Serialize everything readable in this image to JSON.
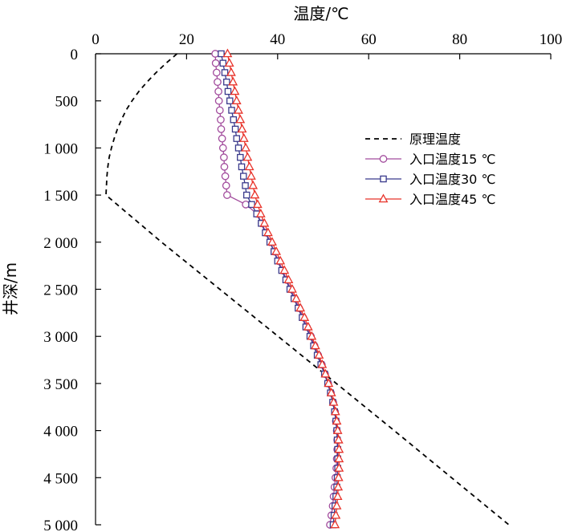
{
  "chart_data": {
    "type": "line",
    "x_label": "温度/℃",
    "y_label": "井深/m",
    "x_axis_position": "top",
    "y_axis_inverted": true,
    "xlim": [
      0,
      100
    ],
    "ylim": [
      0,
      5000
    ],
    "x_ticks": [
      0,
      20,
      40,
      60,
      80,
      100
    ],
    "x_tick_labels": [
      "0",
      "20",
      "40",
      "60",
      "80",
      "100"
    ],
    "y_ticks": [
      0,
      500,
      1000,
      1500,
      2000,
      2500,
      3000,
      3500,
      4000,
      4500,
      5000
    ],
    "y_tick_labels": [
      "0",
      "500",
      "1 000",
      "1 500",
      "2 000",
      "2 500",
      "3 000",
      "3 500",
      "4 000",
      "4 500",
      "5 000"
    ],
    "legend_position": "right",
    "series": [
      {
        "name": "原理温度",
        "style": "dashed",
        "color": "#000000",
        "marker": "none",
        "depth": [
          0,
          100,
          200,
          300,
          400,
          500,
          600,
          700,
          800,
          900,
          1000,
          1100,
          1200,
          1300,
          1400,
          1500,
          2000,
          2500,
          3000,
          3500,
          4000,
          4500,
          5000
        ],
        "temperature": [
          17.9,
          15.5,
          13.3,
          11.3,
          9.5,
          8.0,
          6.7,
          5.7,
          4.8,
          4.1,
          3.5,
          3.0,
          2.7,
          2.5,
          2.4,
          2.3,
          14.5,
          27.3,
          40.1,
          52.9,
          65.6,
          78.2,
          90.8
        ]
      },
      {
        "name": "入口温度15 ℃",
        "style": "solid",
        "color": "#A24C9D",
        "marker": "circle",
        "depth": [
          0,
          100,
          200,
          300,
          400,
          500,
          600,
          700,
          800,
          900,
          1000,
          1100,
          1200,
          1300,
          1400,
          1500,
          1600,
          1700,
          1800,
          1900,
          2000,
          2100,
          2200,
          2300,
          2400,
          2500,
          2600,
          2700,
          2800,
          2900,
          3000,
          3100,
          3200,
          3300,
          3400,
          3500,
          3600,
          3700,
          3800,
          3900,
          4000,
          4100,
          4200,
          4300,
          4400,
          4500,
          4600,
          4700,
          4800,
          4900,
          5000
        ],
        "temperature": [
          26.3,
          26.4,
          26.6,
          26.8,
          27.0,
          27.1,
          27.3,
          27.5,
          27.6,
          27.8,
          28.0,
          28.2,
          28.3,
          28.5,
          28.7,
          28.9,
          33.0,
          35.5,
          36.5,
          37.5,
          38.4,
          39.3,
          40.2,
          41.1,
          42.0,
          42.9,
          43.8,
          44.7,
          45.6,
          46.4,
          47.3,
          48.1,
          48.9,
          49.7,
          50.4,
          51.1,
          51.7,
          52.2,
          52.6,
          52.8,
          53.0,
          53.1,
          53.1,
          53.0,
          52.9,
          52.7,
          52.5,
          52.3,
          52.1,
          51.8,
          51.5
        ]
      },
      {
        "name": "入口温度30 ℃",
        "style": "solid",
        "color": "#3A3A8C",
        "marker": "square",
        "depth": [
          0,
          100,
          200,
          300,
          400,
          500,
          600,
          700,
          800,
          900,
          1000,
          1100,
          1200,
          1300,
          1400,
          1500,
          1600,
          1700,
          1800,
          1900,
          2000,
          2100,
          2200,
          2300,
          2400,
          2500,
          2600,
          2700,
          2800,
          2900,
          3000,
          3100,
          3200,
          3300,
          3400,
          3500,
          3600,
          3700,
          3800,
          3900,
          4000,
          4100,
          4200,
          4300,
          4400,
          4500,
          4600,
          4700,
          4800,
          4900,
          5000
        ],
        "temperature": [
          27.6,
          28.0,
          28.4,
          28.8,
          29.1,
          29.5,
          29.9,
          30.3,
          30.7,
          31.0,
          31.4,
          31.8,
          32.1,
          32.5,
          32.9,
          33.2,
          34.3,
          35.4,
          36.4,
          37.3,
          38.3,
          39.2,
          40.0,
          40.9,
          41.8,
          42.7,
          43.6,
          44.5,
          45.4,
          46.2,
          47.1,
          47.9,
          48.7,
          49.5,
          50.3,
          51.0,
          51.6,
          52.1,
          52.5,
          52.8,
          53.0,
          53.1,
          53.2,
          53.2,
          53.2,
          53.1,
          53.0,
          52.8,
          52.6,
          52.4,
          52.2
        ]
      },
      {
        "name": "入口温度45 ℃",
        "style": "solid",
        "color": "#E8332A",
        "marker": "triangle",
        "depth": [
          0,
          100,
          200,
          300,
          400,
          500,
          600,
          700,
          800,
          900,
          1000,
          1100,
          1200,
          1300,
          1400,
          1500,
          1600,
          1700,
          1800,
          1900,
          2000,
          2100,
          2200,
          2300,
          2400,
          2500,
          2600,
          2700,
          2800,
          2900,
          3000,
          3100,
          3200,
          3300,
          3400,
          3500,
          3600,
          3700,
          3800,
          3900,
          4000,
          4100,
          4200,
          4300,
          4400,
          4500,
          4600,
          4700,
          4800,
          4900,
          5000
        ],
        "temperature": [
          29.0,
          29.4,
          29.8,
          30.2,
          30.6,
          31.0,
          31.4,
          31.8,
          32.2,
          32.6,
          33.0,
          33.4,
          33.8,
          34.2,
          34.6,
          35.0,
          35.6,
          36.3,
          37.1,
          37.9,
          38.8,
          39.7,
          40.6,
          41.5,
          42.4,
          43.2,
          44.1,
          45.0,
          45.9,
          46.7,
          47.5,
          48.3,
          49.1,
          49.8,
          50.5,
          51.2,
          51.8,
          52.3,
          52.7,
          53.0,
          53.2,
          53.4,
          53.5,
          53.5,
          53.5,
          53.4,
          53.3,
          53.2,
          53.0,
          52.8,
          52.6
        ]
      }
    ]
  }
}
